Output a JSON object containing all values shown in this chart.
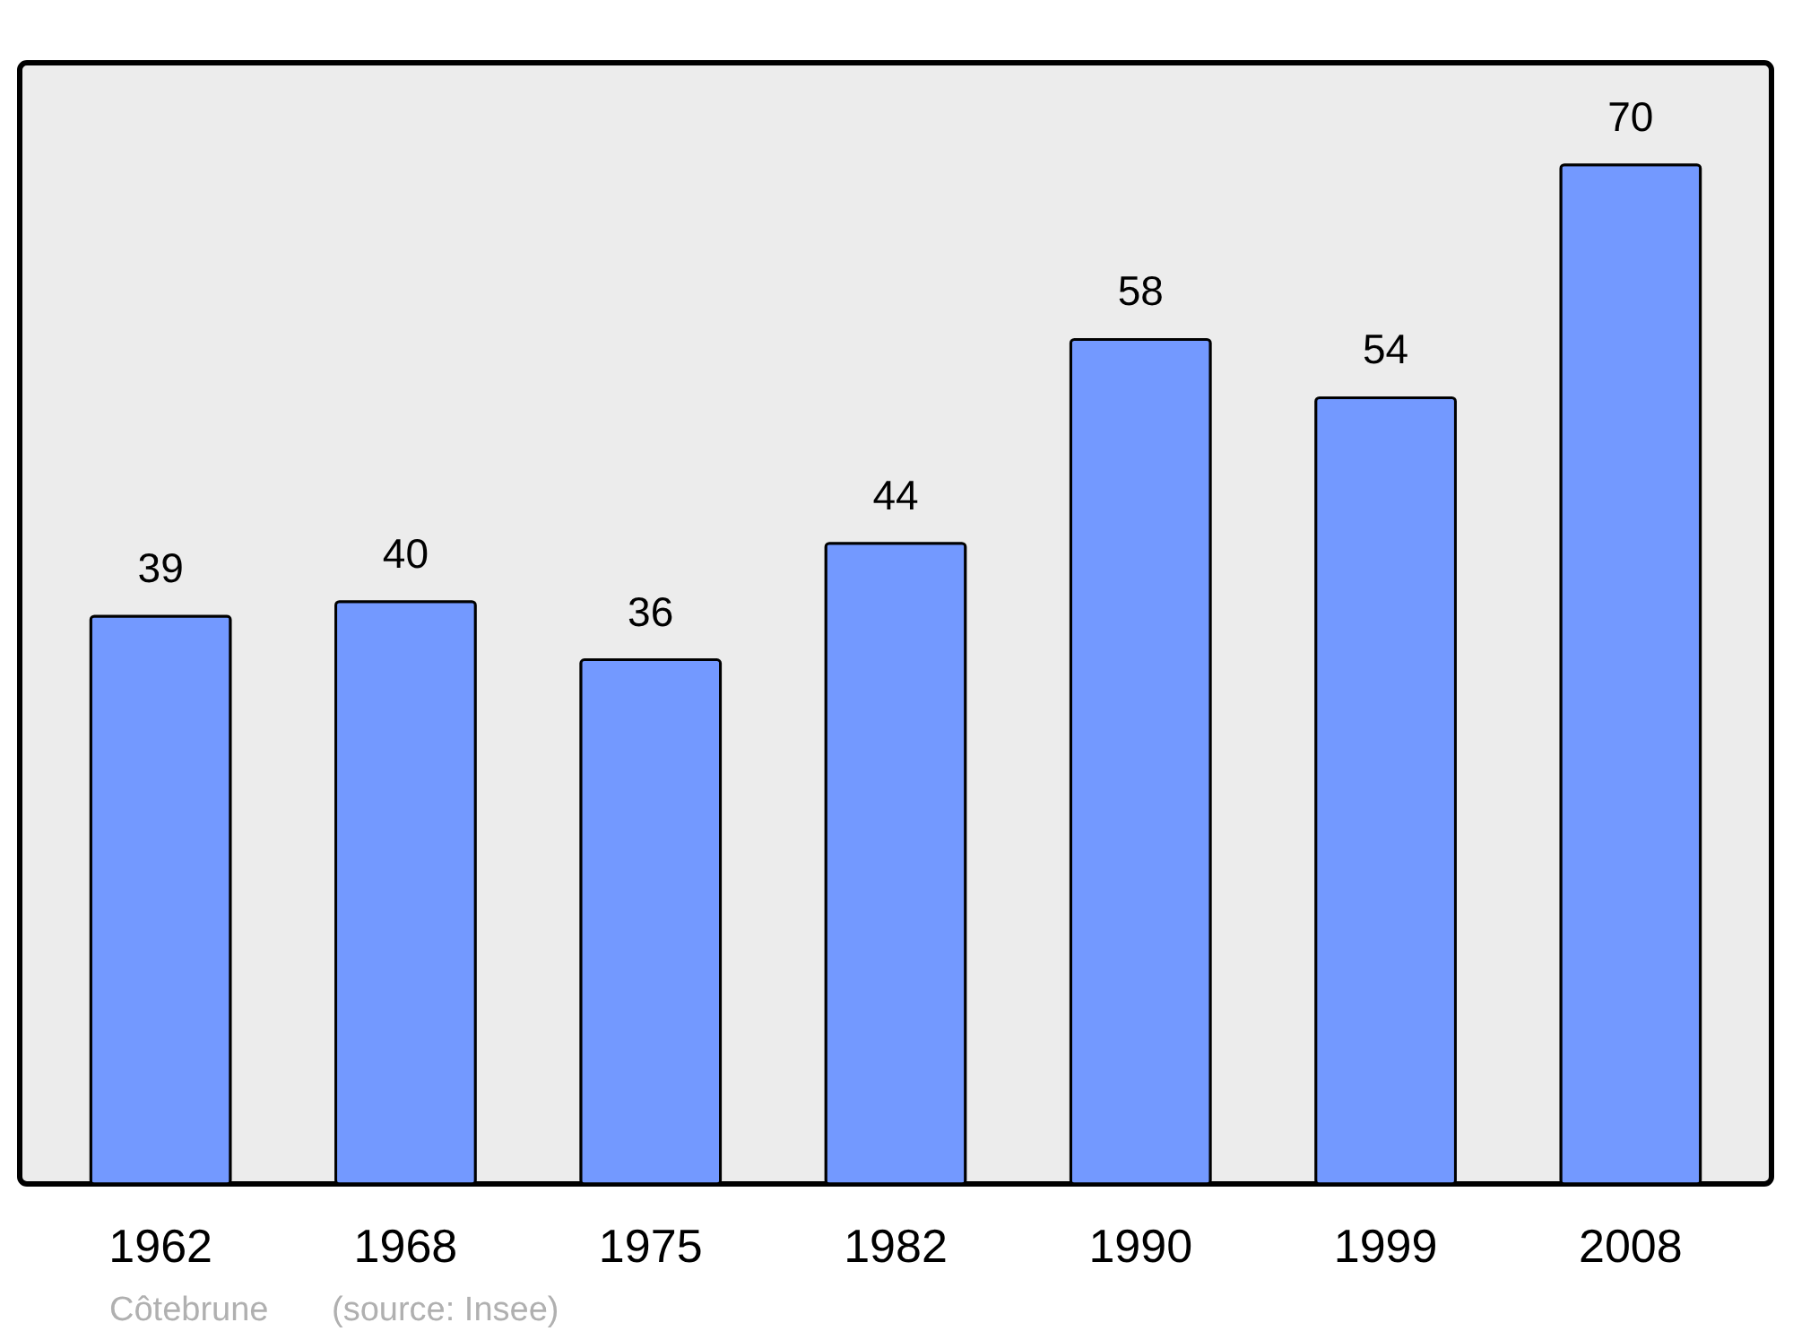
{
  "chart_data": {
    "type": "bar",
    "categories": [
      "1962",
      "1968",
      "1975",
      "1982",
      "1990",
      "1999",
      "2008"
    ],
    "values": [
      39,
      40,
      36,
      44,
      58,
      54,
      70
    ],
    "color": "#7399ff",
    "ylim": [
      0,
      77
    ],
    "data_labels": true,
    "tick_labels": "x",
    "grid": false,
    "annotations": [
      "Côtebrune",
      "(source: Insee)"
    ]
  }
}
